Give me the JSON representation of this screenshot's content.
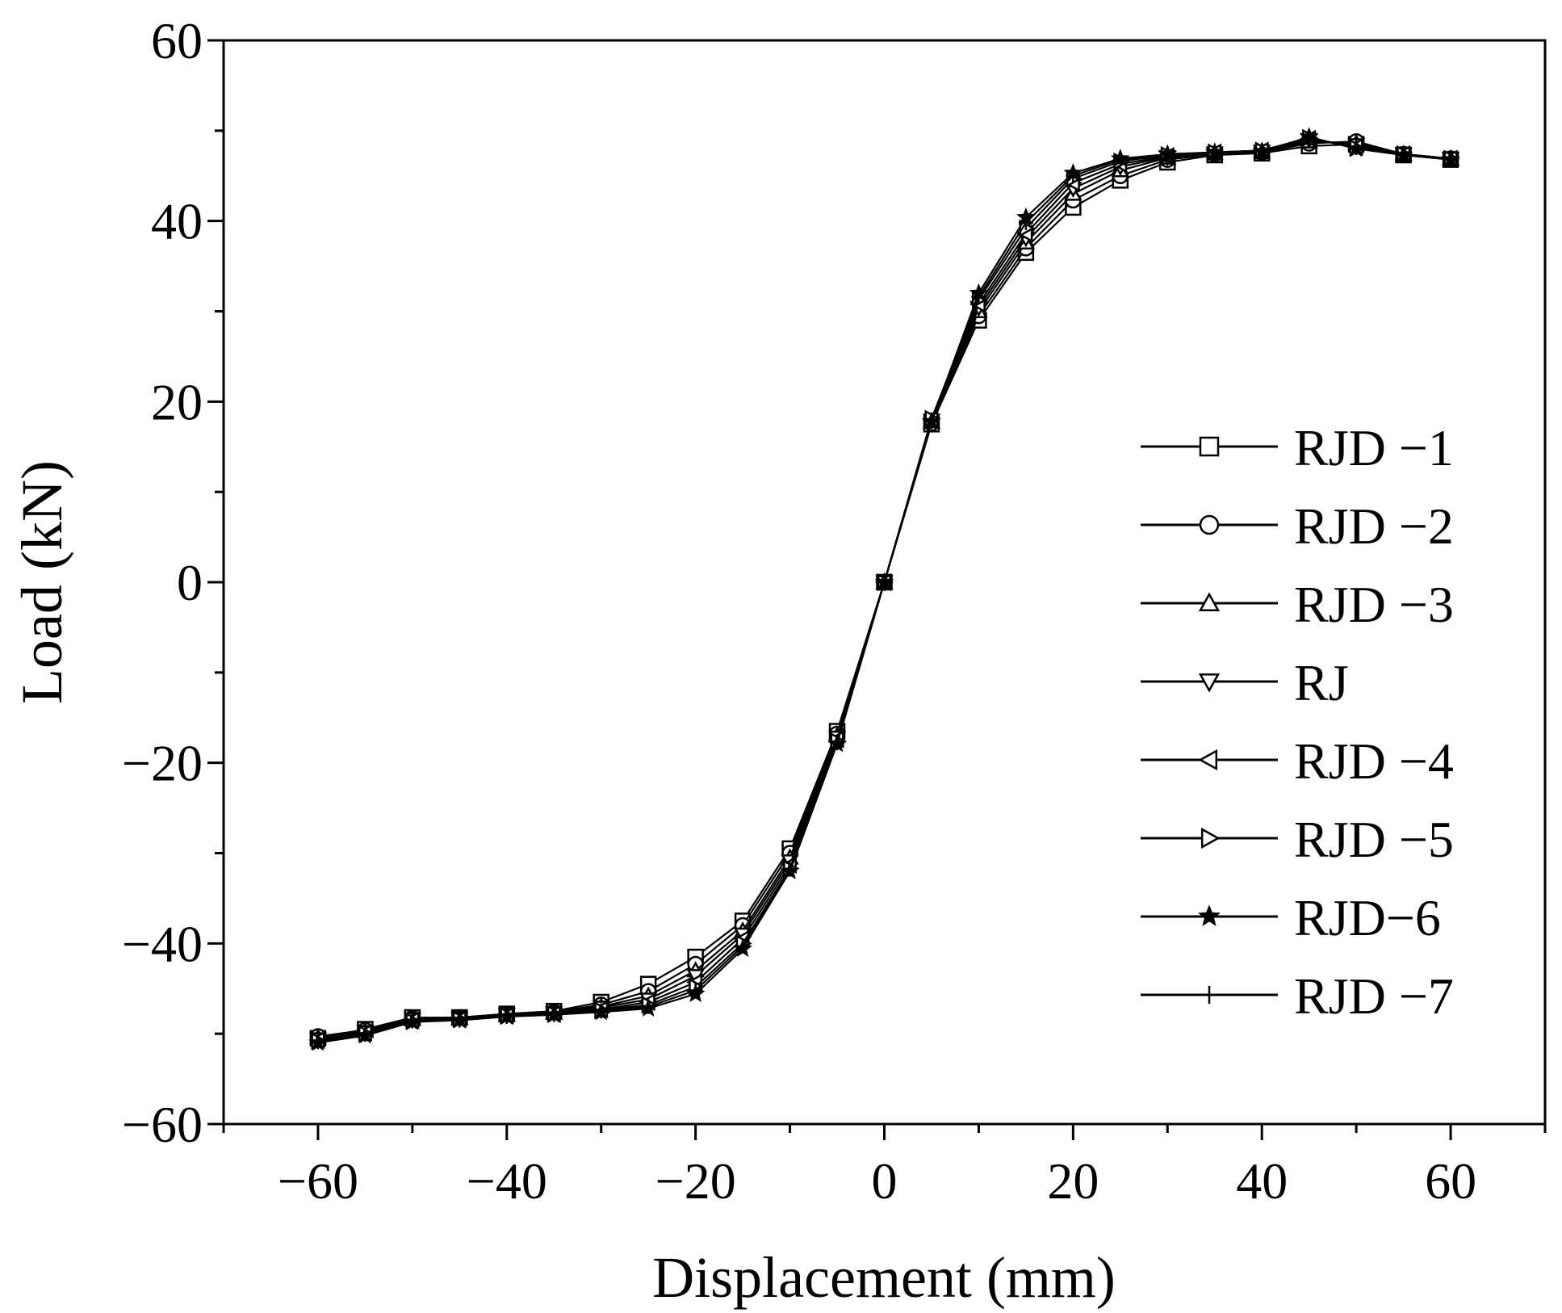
{
  "chart_data": {
    "type": "line",
    "title": "",
    "xlabel": "Displacement (mm)",
    "ylabel": "Load (kN)",
    "xlim": [
      -70,
      70
    ],
    "ylim": [
      -60,
      60
    ],
    "xticks": [
      -60,
      -40,
      -20,
      0,
      20,
      40,
      60
    ],
    "yticks": [
      -60,
      -40,
      -20,
      0,
      20,
      40,
      60
    ],
    "xtick_labels": [
      "−60",
      "−40",
      "−20",
      "0",
      "20",
      "40",
      "60"
    ],
    "ytick_labels": [
      "−60",
      "−40",
      "−20",
      "0",
      "20",
      "40",
      "60"
    ],
    "grid": false,
    "legend_position": "right",
    "x": [
      -60,
      -55,
      -50,
      -45,
      -40,
      -35,
      -30,
      -25,
      -20,
      -15,
      -10,
      -5,
      0,
      5,
      10,
      15,
      20,
      25,
      30,
      35,
      40,
      45,
      50,
      55,
      60
    ],
    "series": [
      {
        "name": "RJD −1",
        "marker": "square",
        "values": [
          -50.5,
          -49.5,
          -48.2,
          -48.2,
          -47.8,
          -47.5,
          -46.5,
          -44.5,
          -41.5,
          -37.5,
          -29.5,
          -16.5,
          0,
          17.5,
          29.0,
          36.5,
          41.5,
          44.5,
          46.5,
          47.3,
          47.5,
          48.3,
          48.5,
          47.3,
          46.8
        ]
      },
      {
        "name": "RJD −2",
        "marker": "circle",
        "values": [
          -50.3,
          -49.6,
          -48.3,
          -48.2,
          -47.8,
          -47.6,
          -46.8,
          -45.3,
          -42.3,
          -38.0,
          -30.0,
          -16.8,
          0,
          17.6,
          29.5,
          37.0,
          42.3,
          45.0,
          46.8,
          47.4,
          47.6,
          48.6,
          48.8,
          47.4,
          46.9
        ]
      },
      {
        "name": "RJD −3",
        "marker": "triangle-up",
        "values": [
          -50.4,
          -49.7,
          -48.4,
          -48.3,
          -47.9,
          -47.7,
          -47.0,
          -45.8,
          -43.0,
          -38.6,
          -30.5,
          -17.0,
          0,
          17.8,
          30.0,
          37.6,
          43.0,
          45.6,
          47.0,
          47.5,
          47.7,
          48.8,
          48.6,
          47.4,
          46.9
        ]
      },
      {
        "name": "RJ",
        "marker": "triangle-down",
        "values": [
          -50.6,
          -49.8,
          -48.4,
          -48.3,
          -47.9,
          -47.7,
          -47.1,
          -46.2,
          -43.6,
          -39.0,
          -30.9,
          -17.2,
          0,
          17.9,
          30.4,
          38.1,
          43.6,
          46.0,
          47.1,
          47.5,
          47.7,
          49.0,
          48.4,
          47.4,
          46.9
        ]
      },
      {
        "name": "RJD −4",
        "marker": "triangle-left",
        "values": [
          -50.7,
          -49.9,
          -48.5,
          -48.4,
          -48.0,
          -47.8,
          -47.3,
          -46.5,
          -44.3,
          -39.5,
          -31.3,
          -17.4,
          0,
          18.0,
          30.8,
          38.6,
          44.2,
          46.3,
          47.2,
          47.6,
          47.8,
          49.1,
          48.2,
          47.4,
          46.9
        ]
      },
      {
        "name": "RJD −5",
        "marker": "triangle-right",
        "values": [
          -50.8,
          -50.0,
          -48.6,
          -48.4,
          -48.0,
          -47.8,
          -47.4,
          -46.8,
          -44.8,
          -40.0,
          -31.7,
          -17.6,
          0,
          18.1,
          31.3,
          39.2,
          44.7,
          46.6,
          47.3,
          47.6,
          47.8,
          49.2,
          48.1,
          47.4,
          46.9
        ]
      },
      {
        "name": "RJD−6",
        "marker": "star",
        "values": [
          -51.0,
          -50.2,
          -48.7,
          -48.5,
          -48.1,
          -47.9,
          -47.6,
          -47.2,
          -45.6,
          -40.6,
          -32.0,
          -17.9,
          0,
          17.8,
          32.0,
          40.4,
          45.3,
          46.9,
          47.4,
          47.6,
          47.7,
          49.3,
          48.0,
          47.3,
          46.8
        ]
      },
      {
        "name": "RJD −7",
        "marker": "plus",
        "values": [
          -50.9,
          -50.1,
          -48.6,
          -48.5,
          -48.1,
          -47.9,
          -47.5,
          -47.0,
          -45.2,
          -40.3,
          -31.8,
          -17.8,
          0,
          18.0,
          31.6,
          39.8,
          45.0,
          46.8,
          47.4,
          47.6,
          47.8,
          49.2,
          48.1,
          47.4,
          46.9
        ]
      }
    ]
  }
}
